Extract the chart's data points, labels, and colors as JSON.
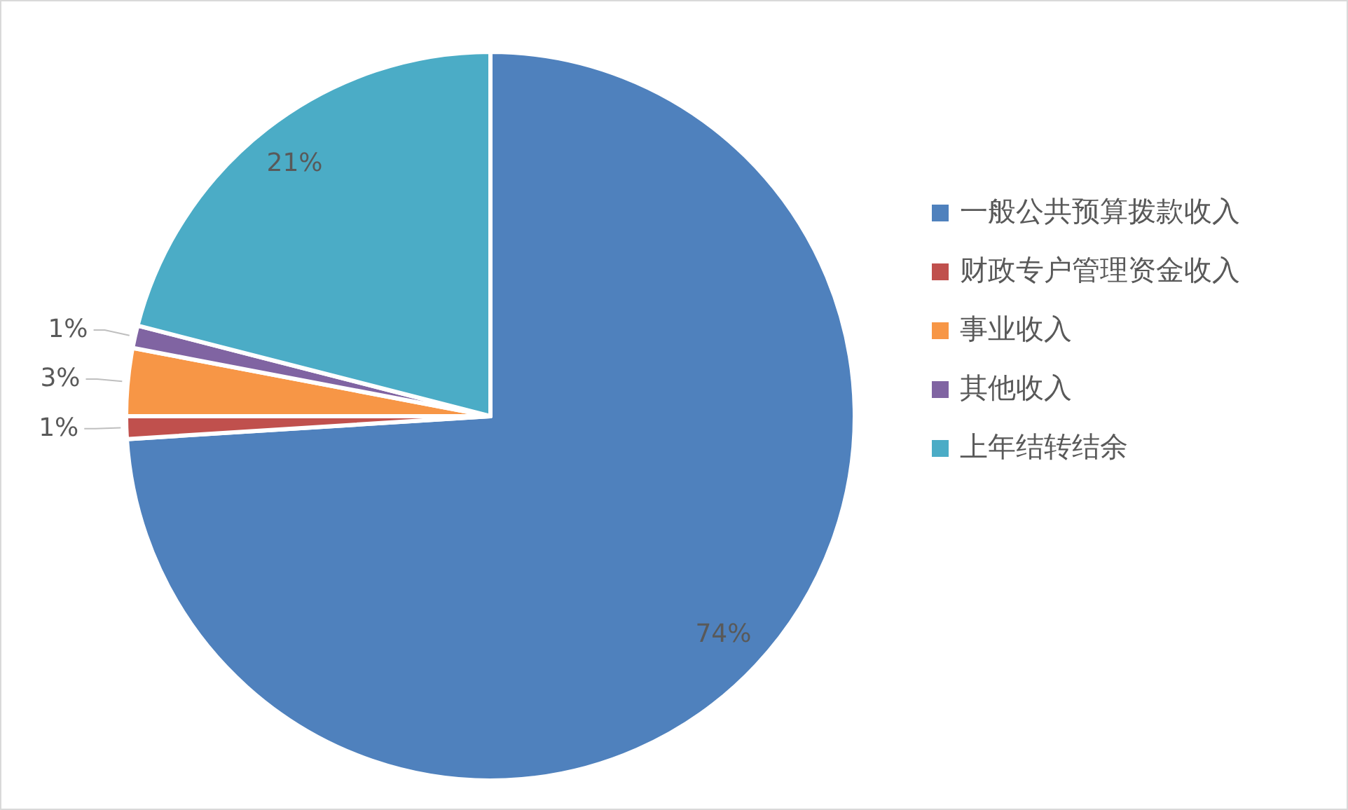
{
  "chart_data": {
    "type": "pie",
    "categories": [
      "一般公共预算拨款收入",
      "财政专户管理资金收入",
      "事业收入",
      "其他收入",
      "上年结转结余"
    ],
    "values": [
      74,
      1,
      3,
      1,
      21
    ],
    "colors": [
      "#4f81bd",
      "#c0504d",
      "#f79646",
      "#8064a2",
      "#4bacc6"
    ],
    "value_labels": [
      "74%",
      "1%",
      "3%",
      "1%",
      "21%"
    ],
    "legend": "right"
  }
}
